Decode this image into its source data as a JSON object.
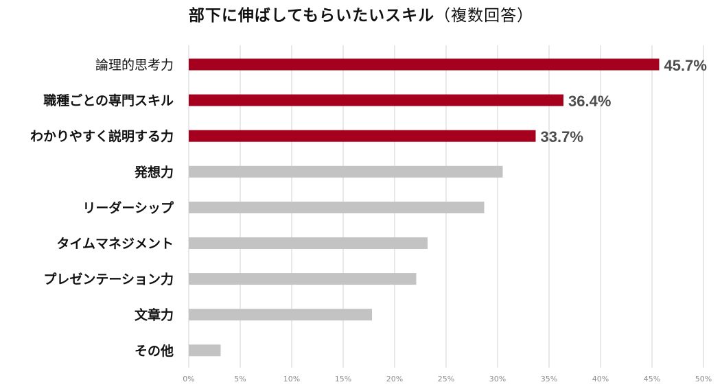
{
  "title": "部下に伸ばしてもらいたいスキル",
  "title_suffix": "（複数回答）",
  "chart_data": {
    "type": "bar",
    "orientation": "horizontal",
    "title": "部下に伸ばしてもらいたいスキル（複数回答）",
    "categories": [
      "論理的思考力",
      "職種ごとの専門スキル",
      "わかりやすく説明する力",
      "発想力",
      "リーダーシップ",
      "タイムマネジメント",
      "プレゼンテーション力",
      "文章力",
      "その他"
    ],
    "values": [
      45.7,
      36.4,
      33.7,
      30.5,
      28.7,
      23.2,
      22.1,
      17.8,
      3.1
    ],
    "data_labels": [
      "45.7%",
      "36.4%",
      "33.7%",
      "",
      "",
      "",
      "",
      "",
      ""
    ],
    "highlight": [
      true,
      true,
      true,
      false,
      false,
      false,
      false,
      false,
      false
    ],
    "xlim": [
      0,
      50
    ],
    "x_ticks": [
      0,
      5,
      10,
      15,
      20,
      25,
      30,
      35,
      40,
      45,
      50
    ],
    "x_tick_labels": [
      "0%",
      "5%",
      "10%",
      "15%",
      "20%",
      "25%",
      "30%",
      "35%",
      "40%",
      "45%",
      "50%"
    ],
    "grid": true,
    "legend": "none",
    "colors": {
      "highlight": "#a5001e",
      "default": "#c3c3c3",
      "grid": "#d9d9d9",
      "label": "#4d4d4d",
      "tick": "#8a8a8a"
    }
  }
}
